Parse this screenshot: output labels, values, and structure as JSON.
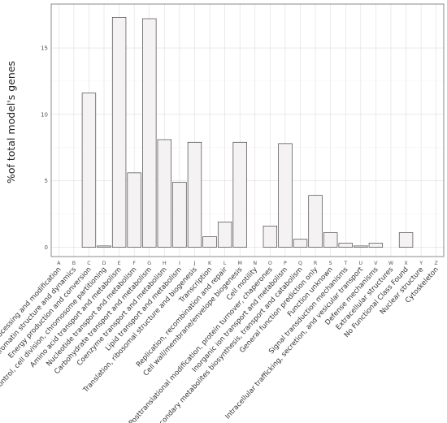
{
  "chart_data": {
    "type": "bar",
    "title": "",
    "xlabel": "",
    "ylabel": "%of total model's genes",
    "ylim": [
      -0.7,
      18.3
    ],
    "yticks": [
      0,
      5,
      10,
      15
    ],
    "grid": true,
    "categories": [
      "A",
      "B",
      "C",
      "D",
      "E",
      "F",
      "G",
      "H",
      "I",
      "J",
      "K",
      "L",
      "M",
      "N",
      "O",
      "P",
      "Q",
      "R",
      "S",
      "T",
      "U",
      "V",
      "W",
      "X",
      "Y",
      "Z"
    ],
    "descriptions": [
      "RNA processing and modification",
      "Chromatin structure and dynamics",
      "Energy production and conversion",
      "Cell cycle control, cell division, chromosome partitioning",
      "Amino acid transport and metabolism",
      "Nucleotide transport and metabolism",
      "Carbohydrate transport and metabolism",
      "Coenzyme transport and metabolism",
      "Lipid transport and metabolism",
      "Translation, ribosomal structure and biogenesis",
      "Transcription",
      "Replication, recombination and repair",
      "Cell wall/membrane/envelope biogenesis",
      "Cell motility",
      "Posttranslational modification, protein turnover, chaperones",
      "Inorganic ion transport and metabolism",
      "Secondary metabolites biosynthesis, transport and catabolism",
      "General function prediction only",
      "Function unknown",
      "Signal transduction mechanisms",
      "Intracellular trafficking, secretion, and vesicular transport",
      "Defense mechanisms",
      "Extracellular structures",
      "No Functional Class Found",
      "Nuclear structure",
      "Cytoskeleton"
    ],
    "values": [
      0,
      0,
      11.6,
      0.1,
      17.3,
      5.6,
      17.2,
      8.1,
      4.9,
      7.9,
      0.8,
      1.9,
      7.9,
      0,
      1.6,
      7.8,
      0.6,
      3.9,
      1.1,
      0.3,
      0.1,
      0.3,
      0,
      1.1,
      0,
      0
    ]
  }
}
